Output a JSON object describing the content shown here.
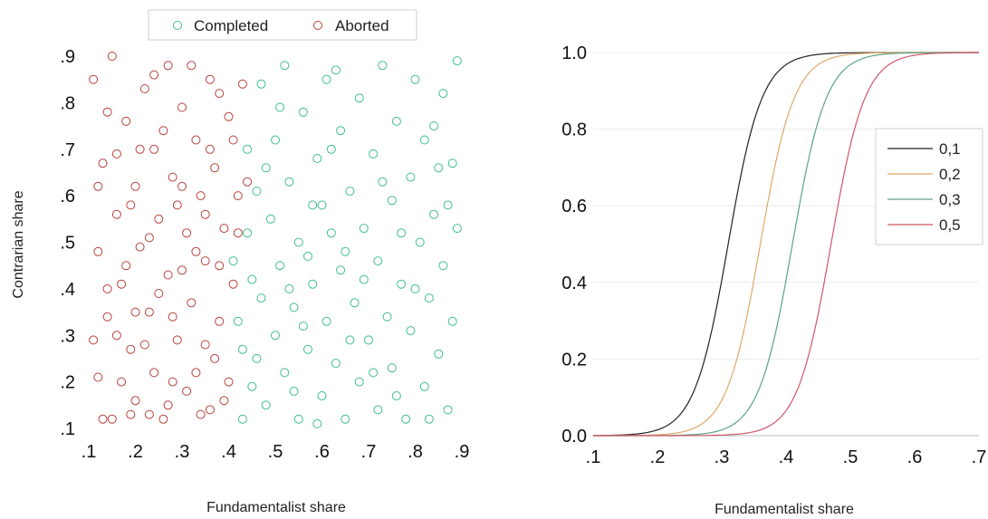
{
  "colors": {
    "completed": "#3fbf8a",
    "aborted": "#b8403c",
    "curve_01": "#222222",
    "curve_02": "#e0a868",
    "curve_03": "#5aa584",
    "curve_05": "#d05868",
    "grid": "#ececec"
  },
  "chart_data": [
    {
      "type": "scatter",
      "xlabel": "Fundamentalist share",
      "ylabel": "Contrarian share",
      "xlim": [
        0.1,
        0.9
      ],
      "ylim": [
        0.1,
        0.9
      ],
      "x_ticks": [
        ".1",
        ".2",
        ".3",
        ".4",
        ".5",
        ".6",
        ".7",
        ".8",
        ".9"
      ],
      "y_ticks": [
        ".1",
        ".2",
        ".3",
        ".4",
        ".5",
        ".6",
        ".7",
        ".8",
        ".9"
      ],
      "legend_position": "top",
      "marker": "open-circle",
      "series": [
        {
          "name": "Completed",
          "color_key": "completed",
          "points": [
            [
              0.41,
              0.46
            ],
            [
              0.42,
              0.33
            ],
            [
              0.43,
              0.27
            ],
            [
              0.44,
              0.52
            ],
            [
              0.44,
              0.7
            ],
            [
              0.45,
              0.19
            ],
            [
              0.46,
              0.61
            ],
            [
              0.47,
              0.38
            ],
            [
              0.47,
              0.84
            ],
            [
              0.48,
              0.15
            ],
            [
              0.49,
              0.55
            ],
            [
              0.5,
              0.3
            ],
            [
              0.5,
              0.72
            ],
            [
              0.51,
              0.45
            ],
            [
              0.52,
              0.22
            ],
            [
              0.52,
              0.88
            ],
            [
              0.53,
              0.63
            ],
            [
              0.54,
              0.36
            ],
            [
              0.55,
              0.5
            ],
            [
              0.55,
              0.12
            ],
            [
              0.56,
              0.78
            ],
            [
              0.57,
              0.27
            ],
            [
              0.58,
              0.58
            ],
            [
              0.58,
              0.41
            ],
            [
              0.59,
              0.68
            ],
            [
              0.6,
              0.17
            ],
            [
              0.61,
              0.85
            ],
            [
              0.61,
              0.33
            ],
            [
              0.62,
              0.52
            ],
            [
              0.63,
              0.24
            ],
            [
              0.64,
              0.74
            ],
            [
              0.64,
              0.44
            ],
            [
              0.65,
              0.12
            ],
            [
              0.66,
              0.61
            ],
            [
              0.67,
              0.37
            ],
            [
              0.68,
              0.81
            ],
            [
              0.68,
              0.2
            ],
            [
              0.69,
              0.53
            ],
            [
              0.7,
              0.29
            ],
            [
              0.71,
              0.69
            ],
            [
              0.72,
              0.46
            ],
            [
              0.72,
              0.14
            ],
            [
              0.73,
              0.88
            ],
            [
              0.74,
              0.34
            ],
            [
              0.75,
              0.59
            ],
            [
              0.75,
              0.23
            ],
            [
              0.76,
              0.76
            ],
            [
              0.77,
              0.41
            ],
            [
              0.78,
              0.12
            ],
            [
              0.79,
              0.64
            ],
            [
              0.79,
              0.31
            ],
            [
              0.8,
              0.85
            ],
            [
              0.81,
              0.5
            ],
            [
              0.82,
              0.19
            ],
            [
              0.82,
              0.72
            ],
            [
              0.83,
              0.38
            ],
            [
              0.84,
              0.56
            ],
            [
              0.85,
              0.26
            ],
            [
              0.86,
              0.82
            ],
            [
              0.86,
              0.45
            ],
            [
              0.87,
              0.14
            ],
            [
              0.88,
              0.67
            ],
            [
              0.88,
              0.33
            ],
            [
              0.89,
              0.53
            ],
            [
              0.89,
              0.89
            ],
            [
              0.46,
              0.25
            ],
            [
              0.48,
              0.66
            ],
            [
              0.51,
              0.79
            ],
            [
              0.54,
              0.18
            ],
            [
              0.57,
              0.47
            ],
            [
              0.6,
              0.58
            ],
            [
              0.63,
              0.87
            ],
            [
              0.66,
              0.29
            ],
            [
              0.69,
              0.42
            ],
            [
              0.73,
              0.63
            ],
            [
              0.76,
              0.17
            ],
            [
              0.8,
              0.4
            ],
            [
              0.84,
              0.75
            ],
            [
              0.87,
              0.58
            ],
            [
              0.43,
              0.12
            ],
            [
              0.45,
              0.42
            ],
            [
              0.53,
              0.4
            ],
            [
              0.59,
              0.11
            ],
            [
              0.65,
              0.48
            ],
            [
              0.71,
              0.22
            ],
            [
              0.77,
              0.52
            ],
            [
              0.83,
              0.12
            ],
            [
              0.85,
              0.66
            ],
            [
              0.62,
              0.7
            ],
            [
              0.56,
              0.32
            ]
          ]
        },
        {
          "name": "Aborted",
          "color_key": "aborted",
          "points": [
            [
              0.11,
              0.85
            ],
            [
              0.12,
              0.48
            ],
            [
              0.12,
              0.21
            ],
            [
              0.13,
              0.67
            ],
            [
              0.14,
              0.34
            ],
            [
              0.15,
              0.9
            ],
            [
              0.15,
              0.12
            ],
            [
              0.16,
              0.56
            ],
            [
              0.17,
              0.41
            ],
            [
              0.18,
              0.76
            ],
            [
              0.19,
              0.27
            ],
            [
              0.2,
              0.62
            ],
            [
              0.2,
              0.16
            ],
            [
              0.21,
              0.49
            ],
            [
              0.22,
              0.83
            ],
            [
              0.23,
              0.35
            ],
            [
              0.24,
              0.7
            ],
            [
              0.24,
              0.22
            ],
            [
              0.25,
              0.55
            ],
            [
              0.26,
              0.12
            ],
            [
              0.27,
              0.88
            ],
            [
              0.27,
              0.43
            ],
            [
              0.28,
              0.64
            ],
            [
              0.29,
              0.29
            ],
            [
              0.3,
              0.79
            ],
            [
              0.31,
              0.18
            ],
            [
              0.31,
              0.52
            ],
            [
              0.32,
              0.37
            ],
            [
              0.33,
              0.72
            ],
            [
              0.34,
              0.13
            ],
            [
              0.34,
              0.6
            ],
            [
              0.35,
              0.46
            ],
            [
              0.36,
              0.85
            ],
            [
              0.37,
              0.25
            ],
            [
              0.37,
              0.66
            ],
            [
              0.38,
              0.33
            ],
            [
              0.39,
              0.53
            ],
            [
              0.39,
              0.16
            ],
            [
              0.4,
              0.77
            ],
            [
              0.41,
              0.41
            ],
            [
              0.42,
              0.6
            ],
            [
              0.43,
              0.84
            ],
            [
              0.44,
              0.63
            ],
            [
              0.13,
              0.12
            ],
            [
              0.14,
              0.78
            ],
            [
              0.17,
              0.2
            ],
            [
              0.19,
              0.58
            ],
            [
              0.21,
              0.7
            ],
            [
              0.23,
              0.13
            ],
            [
              0.25,
              0.39
            ],
            [
              0.28,
              0.2
            ],
            [
              0.29,
              0.58
            ],
            [
              0.32,
              0.88
            ],
            [
              0.35,
              0.28
            ],
            [
              0.36,
              0.7
            ],
            [
              0.38,
              0.45
            ],
            [
              0.4,
              0.2
            ],
            [
              0.41,
              0.72
            ],
            [
              0.16,
              0.3
            ],
            [
              0.18,
              0.45
            ],
            [
              0.22,
              0.28
            ],
            [
              0.26,
              0.74
            ],
            [
              0.3,
              0.44
            ],
            [
              0.33,
              0.22
            ],
            [
              0.12,
              0.62
            ],
            [
              0.14,
              0.4
            ],
            [
              0.16,
              0.69
            ],
            [
              0.2,
              0.35
            ],
            [
              0.24,
              0.86
            ],
            [
              0.27,
              0.15
            ],
            [
              0.3,
              0.62
            ],
            [
              0.33,
              0.48
            ],
            [
              0.36,
              0.14
            ],
            [
              0.38,
              0.82
            ],
            [
              0.42,
              0.52
            ],
            [
              0.11,
              0.29
            ],
            [
              0.19,
              0.13
            ],
            [
              0.23,
              0.51
            ],
            [
              0.28,
              0.34
            ],
            [
              0.35,
              0.56
            ]
          ]
        }
      ]
    },
    {
      "type": "line",
      "xlabel": "Fundamentalist share",
      "ylabel": "",
      "xlim": [
        0.1,
        0.7
      ],
      "ylim": [
        0.0,
        1.0
      ],
      "x_ticks": [
        ".1",
        ".2",
        ".3",
        ".4",
        ".5",
        ".6",
        ".7"
      ],
      "y_ticks": [
        "0.0",
        "0.2",
        "0.4",
        "0.6",
        "0.8",
        "1.0"
      ],
      "grid": "horizontal",
      "legend_position": "right",
      "series": [
        {
          "name": "0,1",
          "color_key": "curve_01",
          "midpoint": 0.31,
          "steepness": 38
        },
        {
          "name": "0,2",
          "color_key": "curve_02",
          "midpoint": 0.36,
          "steepness": 38
        },
        {
          "name": "0,3",
          "color_key": "curve_03",
          "midpoint": 0.41,
          "steepness": 38
        },
        {
          "name": "0,5",
          "color_key": "curve_05",
          "midpoint": 0.47,
          "steepness": 38
        }
      ]
    }
  ]
}
